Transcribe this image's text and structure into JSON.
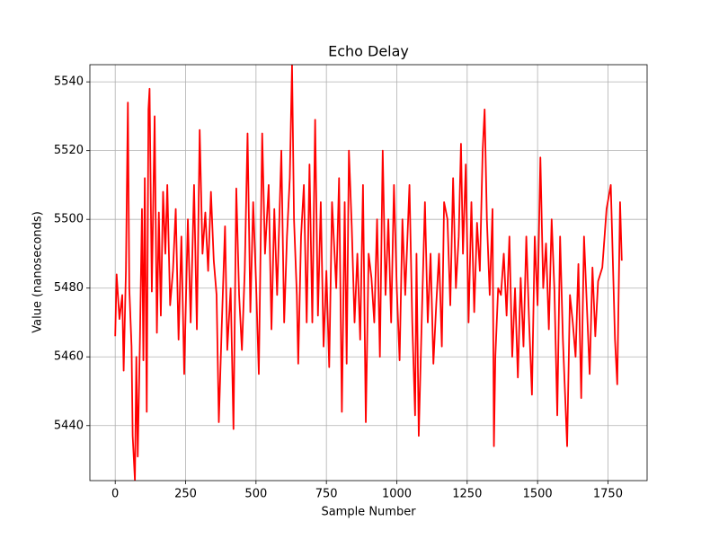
{
  "chart_data": {
    "type": "line",
    "title": "Echo Delay",
    "xlabel": "Sample Number",
    "ylabel": "Value (nanoseconds)",
    "x": [
      0,
      5,
      15,
      25,
      30,
      38,
      45,
      50,
      58,
      62,
      70,
      75,
      80,
      88,
      95,
      100,
      105,
      112,
      118,
      122,
      130,
      140,
      148,
      155,
      162,
      170,
      178,
      185,
      195,
      205,
      215,
      225,
      235,
      245,
      258,
      268,
      280,
      290,
      300,
      310,
      320,
      330,
      340,
      350,
      360,
      368,
      378,
      390,
      398,
      410,
      420,
      430,
      440,
      450,
      460,
      470,
      480,
      490,
      500,
      510,
      522,
      532,
      545,
      555,
      565,
      575,
      590,
      600,
      610,
      620,
      628,
      635,
      645,
      650,
      660,
      670,
      680,
      690,
      700,
      710,
      720,
      730,
      740,
      750,
      760,
      770,
      785,
      795,
      805,
      815,
      822,
      830,
      840,
      850,
      860,
      870,
      880,
      890,
      900,
      910,
      920,
      930,
      940,
      950,
      960,
      970,
      980,
      990,
      1000,
      1010,
      1020,
      1030,
      1045,
      1055,
      1065,
      1070,
      1078,
      1090,
      1100,
      1110,
      1120,
      1130,
      1140,
      1150,
      1160,
      1168,
      1180,
      1190,
      1200,
      1210,
      1220,
      1228,
      1235,
      1245,
      1255,
      1265,
      1275,
      1285,
      1295,
      1305,
      1312,
      1320,
      1330,
      1340,
      1345,
      1350,
      1360,
      1370,
      1380,
      1390,
      1400,
      1410,
      1420,
      1430,
      1440,
      1450,
      1460,
      1470,
      1480,
      1490,
      1500,
      1510,
      1520,
      1530,
      1540,
      1550,
      1560,
      1570,
      1580,
      1590,
      1605,
      1615,
      1625,
      1635,
      1645,
      1655,
      1665,
      1675,
      1685,
      1695,
      1705,
      1715,
      1730,
      1745,
      1760,
      1775,
      1783,
      1793,
      1799
    ],
    "series": [
      {
        "name": "Echo Delay",
        "color": "#ff0000",
        "values": [
          5466,
          5484,
          5471,
          5478,
          5456,
          5485,
          5534,
          5480,
          5463,
          5437,
          5424,
          5460,
          5431,
          5466,
          5503,
          5459,
          5512,
          5444,
          5532,
          5538,
          5479,
          5530,
          5467,
          5502,
          5472,
          5508,
          5490,
          5510,
          5475,
          5485,
          5503,
          5465,
          5495,
          5455,
          5500,
          5470,
          5510,
          5468,
          5526,
          5490,
          5502,
          5485,
          5508,
          5488,
          5478,
          5441,
          5468,
          5498,
          5462,
          5480,
          5439,
          5509,
          5478,
          5462,
          5485,
          5525,
          5473,
          5505,
          5482,
          5455,
          5525,
          5490,
          5510,
          5468,
          5503,
          5478,
          5520,
          5470,
          5495,
          5512,
          5545,
          5500,
          5478,
          5458,
          5495,
          5510,
          5470,
          5516,
          5470,
          5529,
          5472,
          5505,
          5463,
          5485,
          5457,
          5505,
          5480,
          5512,
          5444,
          5505,
          5458,
          5520,
          5498,
          5470,
          5490,
          5465,
          5510,
          5441,
          5490,
          5483,
          5470,
          5500,
          5460,
          5520,
          5478,
          5500,
          5470,
          5510,
          5480,
          5459,
          5500,
          5478,
          5510,
          5470,
          5443,
          5490,
          5437,
          5475,
          5505,
          5470,
          5490,
          5458,
          5475,
          5490,
          5463,
          5505,
          5500,
          5475,
          5512,
          5480,
          5495,
          5522,
          5490,
          5516,
          5470,
          5505,
          5473,
          5499,
          5485,
          5520,
          5532,
          5500,
          5478,
          5503,
          5434,
          5460,
          5480,
          5478,
          5490,
          5472,
          5495,
          5460,
          5480,
          5454,
          5483,
          5463,
          5495,
          5470,
          5449,
          5495,
          5475,
          5518,
          5480,
          5493,
          5468,
          5500,
          5479,
          5443,
          5495,
          5465,
          5434,
          5478,
          5470,
          5460,
          5487,
          5448,
          5495,
          5475,
          5455,
          5486,
          5466,
          5482,
          5486,
          5503,
          5510,
          5465,
          5452,
          5505,
          5488
        ]
      }
    ],
    "xlim": [
      -90,
      1889
    ],
    "ylim": [
      5424,
      5545
    ],
    "xticks": [
      0,
      250,
      500,
      750,
      1000,
      1250,
      1500,
      1750
    ],
    "yticks": [
      5440,
      5460,
      5480,
      5500,
      5520,
      5540
    ],
    "grid": true
  }
}
